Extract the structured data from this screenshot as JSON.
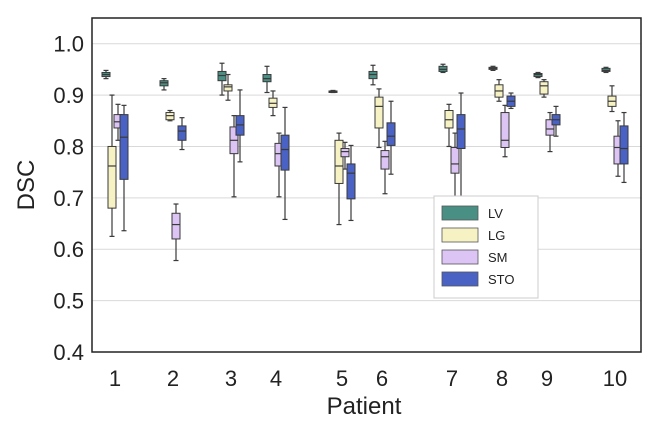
{
  "chart_data": {
    "type": "boxplot",
    "title": "",
    "xlabel": "Patient",
    "ylabel": "DSC",
    "ylim": [
      0.4,
      1.05
    ],
    "yticks": [
      "0.4",
      "0.5",
      "0.6",
      "0.7",
      "0.8",
      "0.9",
      "1.0"
    ],
    "ytick_values": [
      0.4,
      0.5,
      0.6,
      0.7,
      0.8,
      0.9,
      1.0
    ],
    "grid": true,
    "legend_position": "right-center",
    "categories": [
      "1",
      "2",
      "3",
      "4",
      "5",
      "6",
      "7",
      "8",
      "9",
      "10"
    ],
    "series": [
      {
        "name": "LV",
        "color": "#4a8f84",
        "boxes": [
          {
            "min": 0.932,
            "q1": 0.936,
            "median": 0.94,
            "q3": 0.944,
            "max": 0.948
          },
          {
            "min": 0.91,
            "q1": 0.918,
            "median": 0.924,
            "q3": 0.928,
            "max": 0.932
          },
          {
            "min": 0.9,
            "q1": 0.928,
            "median": 0.938,
            "q3": 0.946,
            "max": 0.962
          },
          {
            "min": 0.905,
            "q1": 0.926,
            "median": 0.932,
            "q3": 0.94,
            "max": 0.956
          },
          {
            "min": 0.905,
            "q1": 0.906,
            "median": 0.907,
            "q3": 0.908,
            "max": 0.909
          },
          {
            "min": 0.92,
            "q1": 0.932,
            "median": 0.94,
            "q3": 0.946,
            "max": 0.958
          },
          {
            "min": 0.944,
            "q1": 0.946,
            "median": 0.95,
            "q3": 0.956,
            "max": 0.96
          },
          {
            "min": 0.948,
            "q1": 0.95,
            "median": 0.952,
            "q3": 0.954,
            "max": 0.956
          },
          {
            "min": 0.934,
            "q1": 0.936,
            "median": 0.94,
            "q3": 0.942,
            "max": 0.944
          },
          {
            "min": 0.944,
            "q1": 0.946,
            "median": 0.948,
            "q3": 0.952,
            "max": 0.954
          }
        ]
      },
      {
        "name": "LG",
        "color": "#f7f2c4",
        "boxes": [
          {
            "min": 0.625,
            "q1": 0.68,
            "median": 0.762,
            "q3": 0.8,
            "max": 0.9
          },
          {
            "min": 0.85,
            "q1": 0.852,
            "median": 0.86,
            "q3": 0.866,
            "max": 0.87
          },
          {
            "min": 0.89,
            "q1": 0.908,
            "median": 0.916,
            "q3": 0.92,
            "max": 0.94
          },
          {
            "min": 0.86,
            "q1": 0.876,
            "median": 0.884,
            "q3": 0.894,
            "max": 0.908
          },
          {
            "min": 0.648,
            "q1": 0.728,
            "median": 0.762,
            "q3": 0.812,
            "max": 0.826
          },
          {
            "min": 0.798,
            "q1": 0.836,
            "median": 0.878,
            "q3": 0.896,
            "max": 0.912
          },
          {
            "min": 0.8,
            "q1": 0.836,
            "median": 0.852,
            "q3": 0.87,
            "max": 0.882
          },
          {
            "min": 0.888,
            "q1": 0.896,
            "median": 0.908,
            "q3": 0.92,
            "max": 0.93
          },
          {
            "min": 0.896,
            "q1": 0.902,
            "median": 0.918,
            "q3": 0.926,
            "max": 0.93
          },
          {
            "min": 0.868,
            "q1": 0.878,
            "median": 0.888,
            "q3": 0.898,
            "max": 0.918
          }
        ]
      },
      {
        "name": "SM",
        "color": "#dcc4f4",
        "boxes": [
          {
            "min": 0.812,
            "q1": 0.836,
            "median": 0.848,
            "q3": 0.862,
            "max": 0.882
          },
          {
            "min": 0.578,
            "q1": 0.62,
            "median": 0.648,
            "q3": 0.67,
            "max": 0.688
          },
          {
            "min": 0.702,
            "q1": 0.786,
            "median": 0.812,
            "q3": 0.838,
            "max": 0.86
          },
          {
            "min": 0.702,
            "q1": 0.762,
            "median": 0.786,
            "q3": 0.806,
            "max": 0.826
          },
          {
            "min": 0.756,
            "q1": 0.78,
            "median": 0.79,
            "q3": 0.796,
            "max": 0.808
          },
          {
            "min": 0.708,
            "q1": 0.756,
            "median": 0.78,
            "q3": 0.792,
            "max": 0.81
          },
          {
            "min": 0.698,
            "q1": 0.748,
            "median": 0.766,
            "q3": 0.798,
            "max": 0.826
          },
          {
            "min": 0.78,
            "q1": 0.798,
            "median": 0.812,
            "q3": 0.866,
            "max": 0.88
          },
          {
            "min": 0.79,
            "q1": 0.822,
            "median": 0.834,
            "q3": 0.852,
            "max": 0.866
          },
          {
            "min": 0.742,
            "q1": 0.766,
            "median": 0.798,
            "q3": 0.82,
            "max": 0.85
          }
        ]
      },
      {
        "name": "STO",
        "color": "#4a62c4",
        "boxes": [
          {
            "min": 0.636,
            "q1": 0.736,
            "median": 0.818,
            "q3": 0.862,
            "max": 0.88
          },
          {
            "min": 0.794,
            "q1": 0.812,
            "median": 0.83,
            "q3": 0.84,
            "max": 0.856
          },
          {
            "min": 0.77,
            "q1": 0.822,
            "median": 0.842,
            "q3": 0.86,
            "max": 0.91
          },
          {
            "min": 0.658,
            "q1": 0.754,
            "median": 0.794,
            "q3": 0.822,
            "max": 0.876
          },
          {
            "min": 0.656,
            "q1": 0.698,
            "median": 0.748,
            "q3": 0.766,
            "max": 0.802
          },
          {
            "min": 0.746,
            "q1": 0.802,
            "median": 0.82,
            "q3": 0.846,
            "max": 0.888
          },
          {
            "min": 0.696,
            "q1": 0.796,
            "median": 0.834,
            "q3": 0.862,
            "max": 0.904
          },
          {
            "min": 0.874,
            "q1": 0.878,
            "median": 0.888,
            "q3": 0.898,
            "max": 0.904
          },
          {
            "min": 0.82,
            "q1": 0.842,
            "median": 0.852,
            "q3": 0.862,
            "max": 0.878
          },
          {
            "min": 0.73,
            "q1": 0.766,
            "median": 0.796,
            "q3": 0.84,
            "max": 0.866
          }
        ]
      }
    ]
  }
}
